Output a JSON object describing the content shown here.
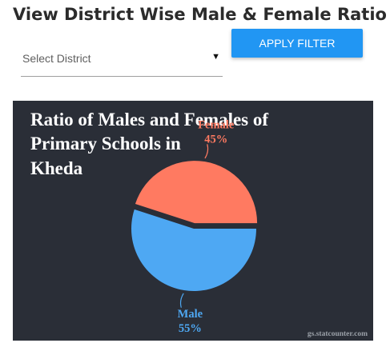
{
  "header": {
    "title": "View District Wise Male & Female Ratio"
  },
  "filter": {
    "district_placeholder": "Select District",
    "apply_label": "APPLY FILTER",
    "accent_color": "#2196f3"
  },
  "chart_data": {
    "type": "pie",
    "title_lines": [
      "Ratio of Males and Females of",
      "Primary Schools in",
      "Kheda"
    ],
    "slices": [
      {
        "name": "Female",
        "value": 45,
        "label": "45%",
        "color": "#ff7a61",
        "exploded": true
      },
      {
        "name": "Male",
        "value": 55,
        "label": "55%",
        "color": "#4ea8f3",
        "exploded": false
      }
    ],
    "background_color": "#2a2e37",
    "credit": "gs.statcounter.com"
  }
}
